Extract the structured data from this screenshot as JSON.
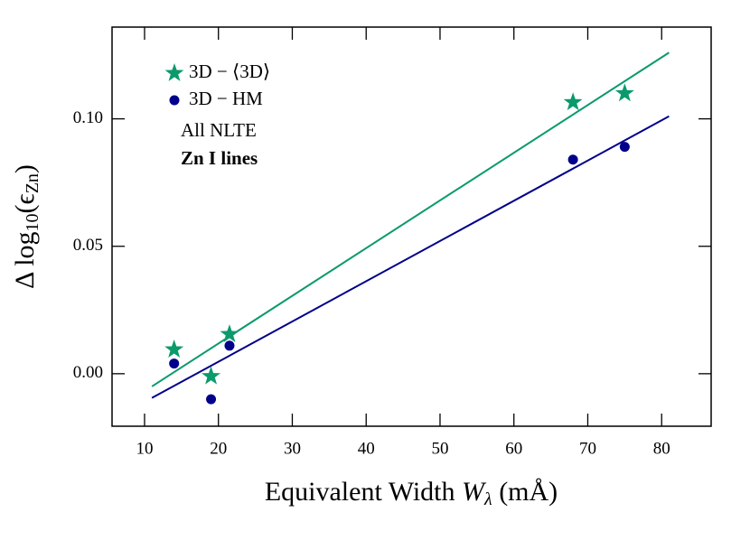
{
  "chart_data": {
    "type": "scatter",
    "xlabel": [
      "Equivalent Width ",
      "W",
      "λ",
      " (mÅ)"
    ],
    "ylabel": [
      "Δ log",
      "10",
      "(ϵ",
      "Zn",
      ")"
    ],
    "xlim": [
      5.6,
      86.7
    ],
    "ylim": [
      -0.0206,
      0.136
    ],
    "xticks": [
      10,
      20,
      30,
      40,
      50,
      60,
      70,
      80
    ],
    "yticks": [
      {
        "value": 0,
        "label": "0.00"
      },
      {
        "value": 0.05,
        "label": "0.05"
      },
      {
        "value": 0.1,
        "label": "0.10"
      }
    ],
    "legend": "upper left",
    "series": [
      {
        "name": "3D − ⟨3D⟩",
        "color": "#0a9a6c",
        "marker": "star",
        "x": [
          14,
          19,
          21.5,
          68,
          75
        ],
        "values": [
          0.0095,
          -0.001,
          0.0155,
          0.1065,
          0.11
        ]
      },
      {
        "name": "3D − HM",
        "color": "#00008b",
        "marker": "circle",
        "x": [
          14,
          19,
          21.5,
          68,
          75
        ],
        "values": [
          0.004,
          -0.01,
          0.011,
          0.084,
          0.089
        ]
      }
    ],
    "fits": [
      {
        "color": "#0a9a6c",
        "x": [
          11,
          81
        ],
        "values": [
          -0.005,
          0.126
        ]
      },
      {
        "color": "#00008b",
        "x": [
          11,
          81
        ],
        "values": [
          -0.0095,
          0.101
        ]
      }
    ],
    "annotations": [
      {
        "text": "All NLTE",
        "bold": false
      },
      {
        "text": "Zn I lines",
        "bold": true
      }
    ]
  }
}
